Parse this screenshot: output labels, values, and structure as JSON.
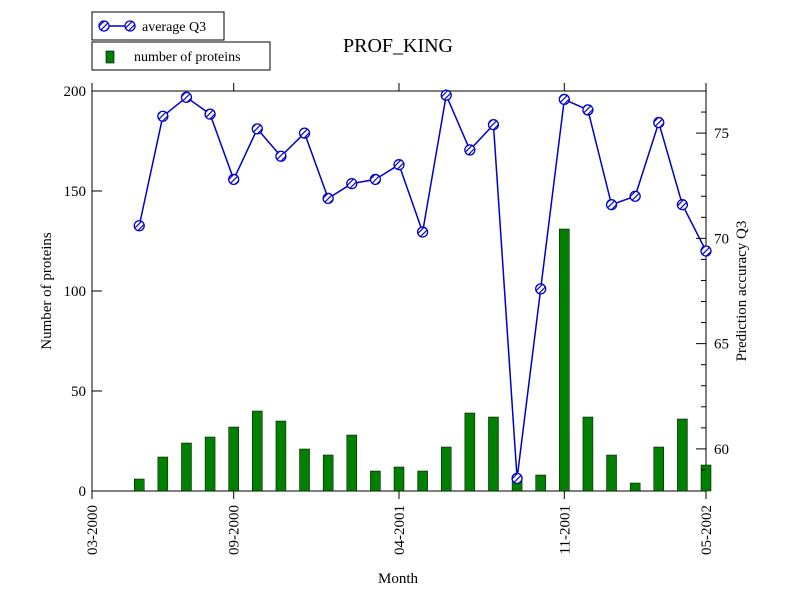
{
  "chart_data": {
    "type": "bar+line",
    "title": "PROF_KING",
    "xlabel": "Month",
    "ylabel_left": "Number of proteins",
    "ylabel_right": "Prediction accuracy Q3",
    "ylim_left": [
      0,
      200
    ],
    "ylim_right": [
      58.0,
      77.0
    ],
    "left_ticks": [
      0,
      50,
      100,
      150,
      200
    ],
    "right_ticks": [
      60,
      65,
      70,
      75
    ],
    "x_tick_labels": [
      "03-2000",
      "09-2000",
      "04-2001",
      "11-2001",
      "05-2002"
    ],
    "grid": false,
    "legend_placement": "top-left, outside plot",
    "months": [
      "2000-05",
      "2000-06",
      "2000-07",
      "2000-08",
      "2000-09",
      "2000-10",
      "2000-11",
      "2000-12",
      "2001-01",
      "2001-02",
      "2001-03",
      "2001-04",
      "2001-05",
      "2001-06",
      "2001-07",
      "2001-08",
      "2001-09",
      "2001-10",
      "2001-11",
      "2001-12",
      "2002-01",
      "2002-02",
      "2002-03",
      "2002-04",
      "2002-05"
    ],
    "series": [
      {
        "name": "number of proteins",
        "kind": "bar",
        "axis": "left",
        "color": "#008000",
        "values": [
          6,
          17,
          24,
          27,
          32,
          40,
          35,
          21,
          18,
          28,
          10,
          12,
          10,
          22,
          39,
          37,
          5,
          8,
          131,
          37,
          18,
          4,
          22,
          36,
          13
        ]
      },
      {
        "name": "average Q3",
        "kind": "line",
        "axis": "right",
        "color": "#0000c8",
        "values": [
          70.6,
          75.8,
          76.7,
          75.9,
          72.8,
          75.2,
          73.9,
          75.0,
          71.9,
          72.6,
          72.8,
          73.5,
          70.3,
          76.8,
          74.2,
          75.4,
          58.6,
          67.6,
          76.6,
          76.1,
          71.6,
          72.0,
          75.5,
          71.6,
          69.4
        ]
      }
    ]
  }
}
